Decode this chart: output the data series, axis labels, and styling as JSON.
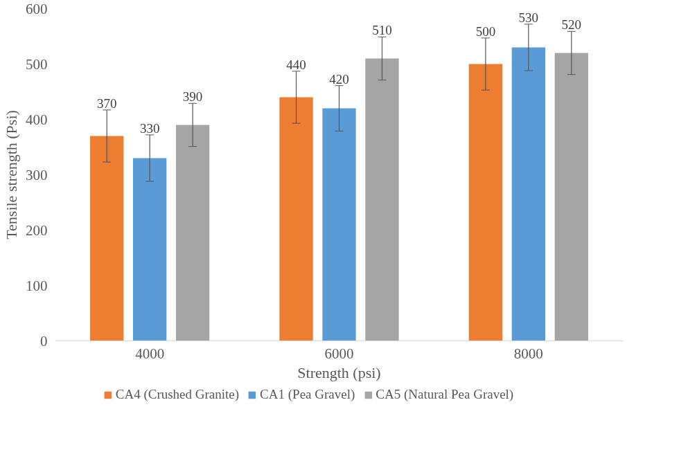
{
  "chart_data": {
    "type": "bar",
    "xlabel": "Strength (psi)",
    "ylabel": "Tensile strength (Psi)",
    "categories": [
      "4000",
      "6000",
      "8000"
    ],
    "series": [
      {
        "name": "CA4 (Crushed Granite)",
        "color": "#ed7d31",
        "values": [
          370,
          440,
          500
        ],
        "errors": [
          47,
          47,
          47
        ]
      },
      {
        "name": "CA1 (Pea Gravel)",
        "color": "#5b9bd5",
        "values": [
          330,
          420,
          530
        ],
        "errors": [
          42,
          41,
          42
        ]
      },
      {
        "name": "CA5 (Natural Pea Gravel)",
        "color": "#a5a5a5",
        "values": [
          390,
          510,
          520
        ],
        "errors": [
          39,
          39,
          39
        ]
      }
    ],
    "ylim": [
      0,
      600
    ],
    "yticks": [
      0,
      100,
      200,
      300,
      400,
      500,
      600
    ],
    "grid": false,
    "legend": "bottom",
    "data_labels": true
  }
}
